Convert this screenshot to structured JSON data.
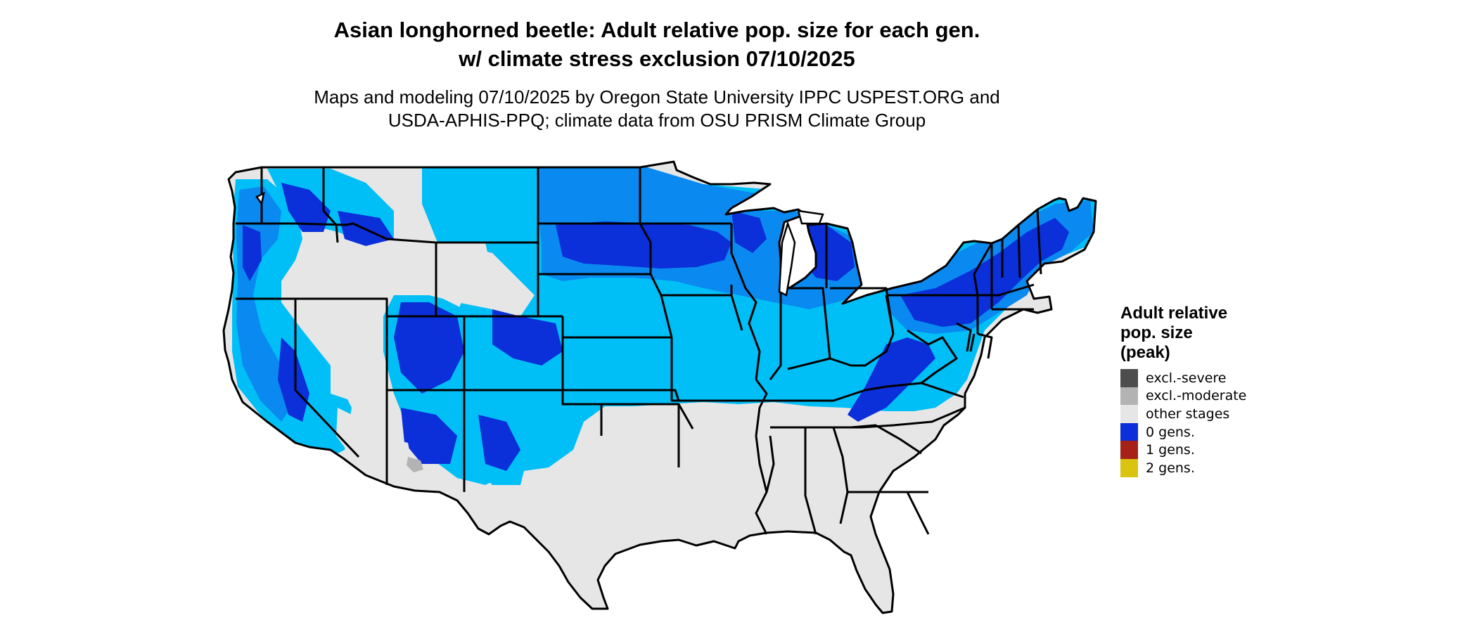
{
  "title": "Asian longhorned beetle: Adult relative pop. size for each gen.\nw/ climate stress exclusion 07/10/2025",
  "subtitle": "Maps and modeling 07/10/2025 by Oregon State University IPPC USPEST.ORG and\nUSDA-APHIS-PPQ; climate data from OSU PRISM Climate Group",
  "legend": {
    "title": "Adult relative\npop. size\n(peak)",
    "items": [
      {
        "label": "excl.-severe",
        "color": "#4d4d4d"
      },
      {
        "label": "excl.-moderate",
        "color": "#b3b3b3"
      },
      {
        "label": "other stages",
        "color": "#e6e6e6"
      },
      {
        "label": "0 gens.",
        "color": "#0b2fd9"
      },
      {
        "label": "1 gens.",
        "color": "#a62118"
      },
      {
        "label": "2 gens.",
        "color": "#dbc312"
      }
    ]
  },
  "map_colors": {
    "ocean": "#ffffff",
    "no_data": "#e6e6e6",
    "low_density": "#00bff7",
    "mid_density": "#0a8af0",
    "high_density": "#0b2fd9",
    "excluded_moderate": "#b3b3b3",
    "state_border": "#000000"
  }
}
